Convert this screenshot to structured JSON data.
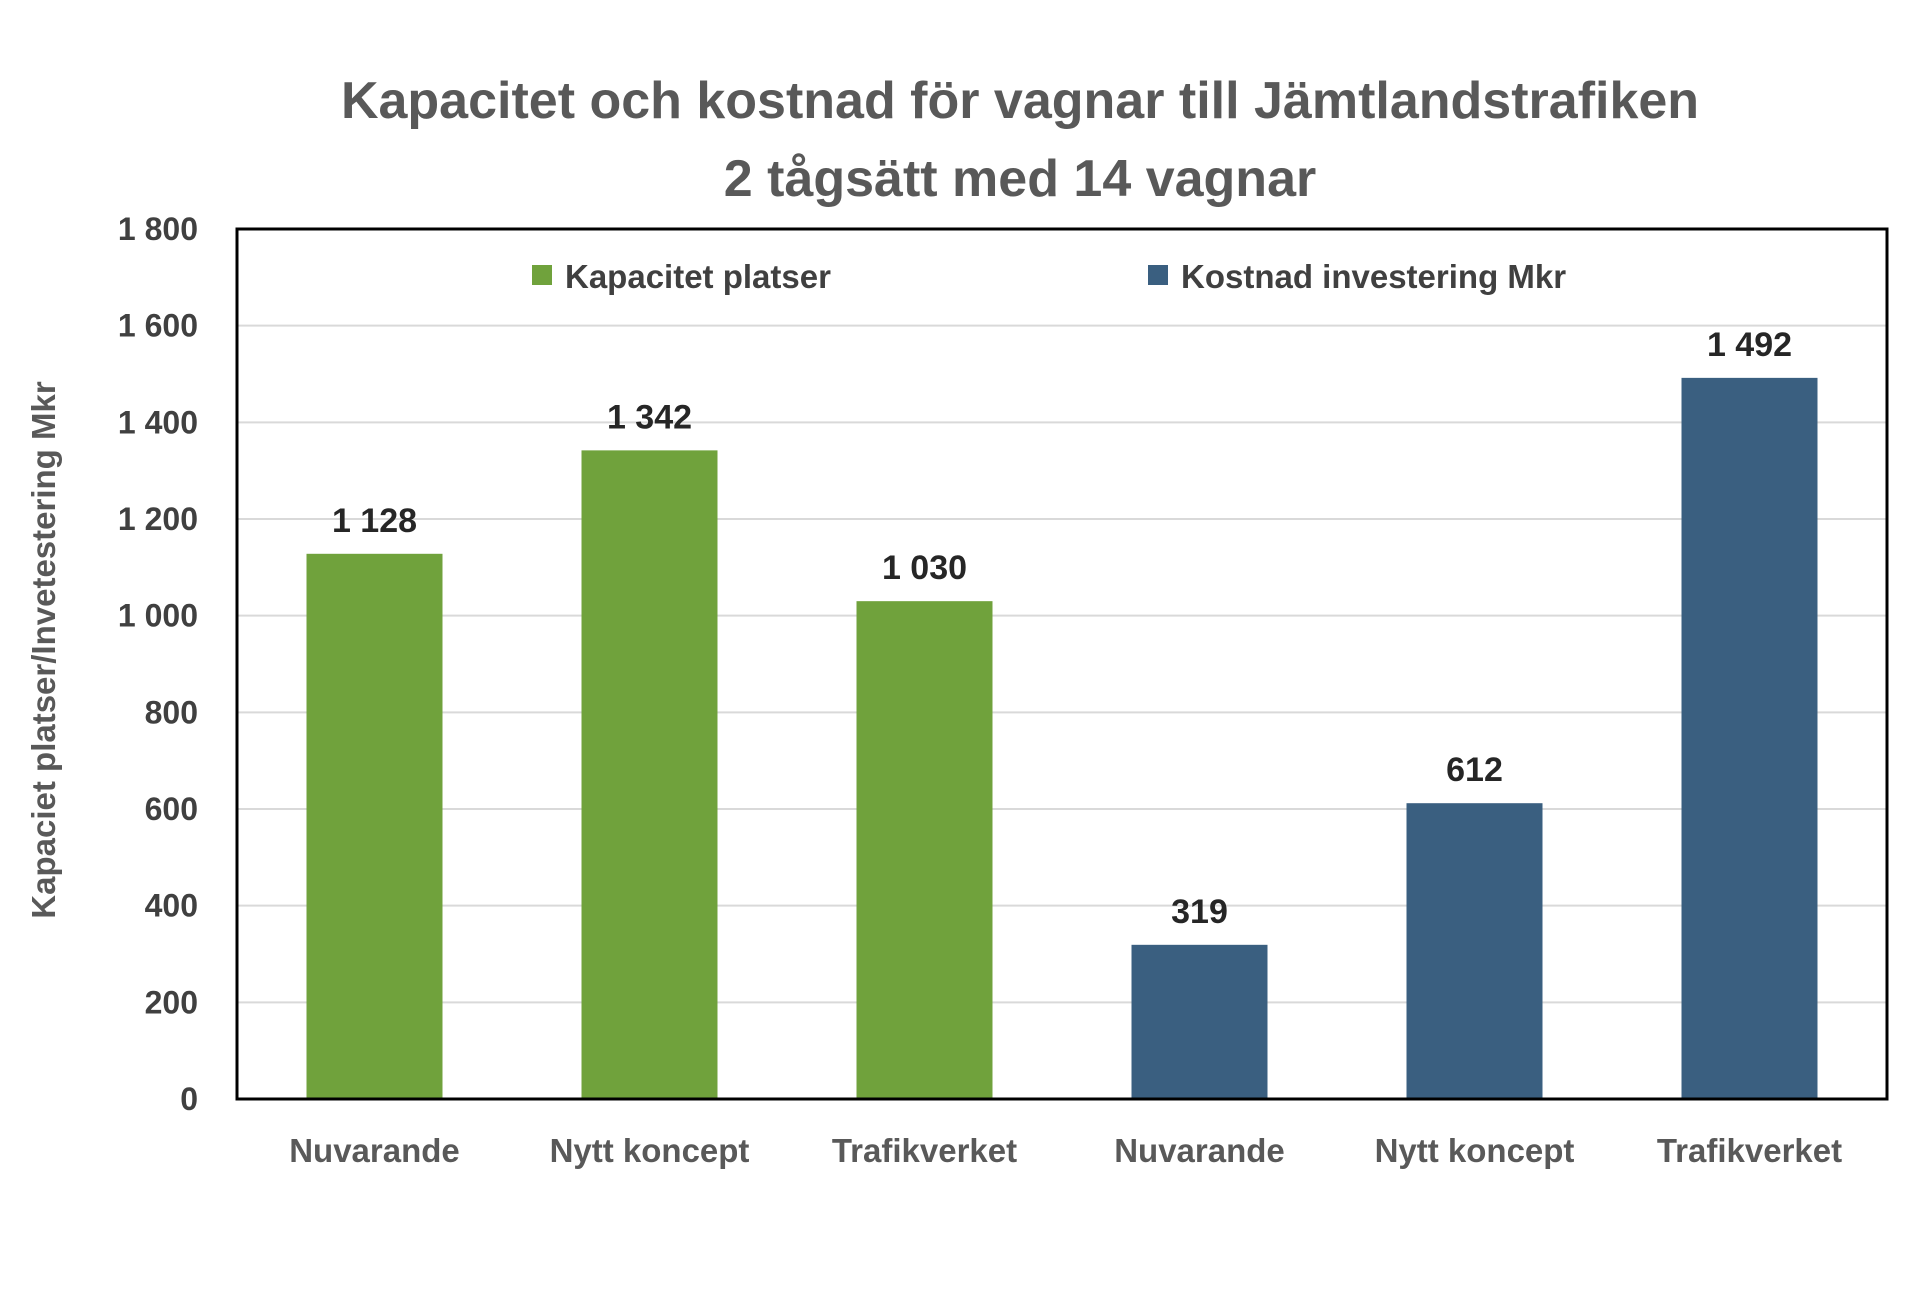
{
  "chart_data": {
    "type": "bar",
    "title": "Kapacitet och kostnad för vagnar till Jämtlandstrafiken",
    "subtitle": "2 tågsätt med 14 vagnar",
    "ylabel": "Kapaciet platser/Invetestering Mkr",
    "xlabel": "",
    "ylim": [
      0,
      1800
    ],
    "ytick_step": 200,
    "yticks": [
      "0",
      "200",
      "400",
      "600",
      "800",
      "1 000",
      "1 200",
      "1 400",
      "1 600",
      "1 800"
    ],
    "grid": true,
    "legend_position": "top",
    "categories": [
      "Nuvarande",
      "Nytt koncept",
      "Trafikverket",
      "Nuvarande",
      "Nytt koncept",
      "Trafikverket"
    ],
    "series": [
      {
        "name": "Kapacitet platser",
        "color": "#70A23C",
        "values": [
          1128,
          1342,
          1030,
          null,
          null,
          null
        ],
        "labels": [
          "1 128",
          "1 342",
          "1 030",
          "",
          "",
          ""
        ]
      },
      {
        "name": "Kostnad investering Mkr",
        "color": "#3A5F80",
        "values": [
          null,
          null,
          null,
          319,
          612,
          1492
        ],
        "labels": [
          "",
          "",
          "",
          "319",
          "612",
          "1 492"
        ]
      }
    ]
  }
}
